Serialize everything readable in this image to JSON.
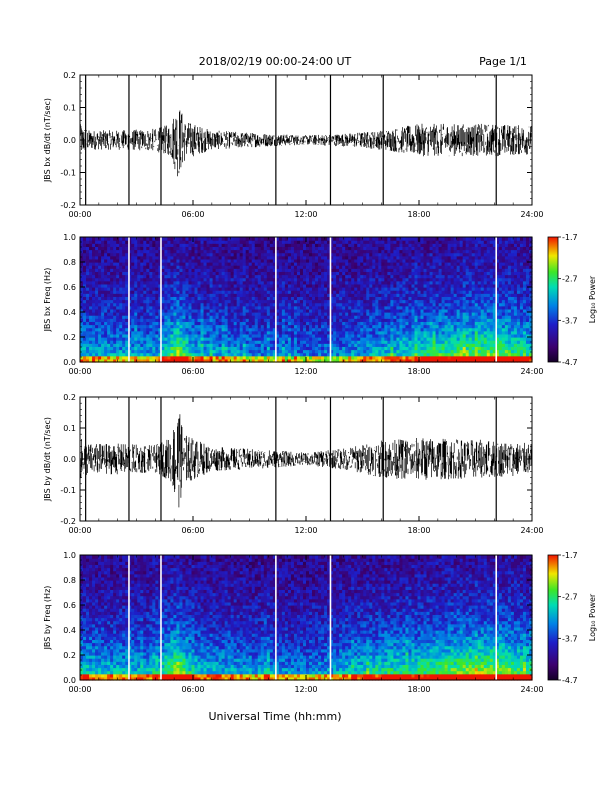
{
  "header": {
    "title": "2018/02/19   00:00-24:00 UT",
    "page": "Page 1/1"
  },
  "xaxis_label": "Universal Time (hh:mm)",
  "chart_data": [
    {
      "type": "line",
      "ylabel": "JBS bx dB/dt (nT/sec)",
      "xlim": [
        0,
        24
      ],
      "ylim": [
        -0.2,
        0.2
      ],
      "xticks": [
        "00:00",
        "06:00",
        "12:00",
        "18:00",
        "24:00"
      ],
      "yticks": [
        "0.2",
        "0.1",
        "0.0",
        "-0.1",
        "-0.2"
      ],
      "envelope": [
        {
          "x": 0,
          "amp": 0.05
        },
        {
          "x": 0.5,
          "amp": 0.03
        },
        {
          "x": 2,
          "amp": 0.03
        },
        {
          "x": 4,
          "amp": 0.035
        },
        {
          "x": 4.8,
          "amp": 0.05
        },
        {
          "x": 5.2,
          "amp": 0.12
        },
        {
          "x": 5.6,
          "amp": 0.06
        },
        {
          "x": 7,
          "amp": 0.03
        },
        {
          "x": 10,
          "amp": 0.02
        },
        {
          "x": 12,
          "amp": 0.015
        },
        {
          "x": 14,
          "amp": 0.02
        },
        {
          "x": 16,
          "amp": 0.03
        },
        {
          "x": 18,
          "amp": 0.05
        },
        {
          "x": 20,
          "amp": 0.05
        },
        {
          "x": 22,
          "amp": 0.05
        },
        {
          "x": 24,
          "amp": 0.045
        }
      ],
      "gap_lines": [
        0.3,
        2.6,
        4.3,
        10.4,
        13.3,
        16.1,
        22.1
      ]
    },
    {
      "type": "heatmap",
      "ylabel": "JBS bx Freq (Hz)",
      "xlim": [
        0,
        24
      ],
      "ylim": [
        0.0,
        1.0
      ],
      "xticks": [
        "00:00",
        "06:00",
        "12:00",
        "18:00",
        "24:00"
      ],
      "yticks": [
        "1.0",
        "0.8",
        "0.6",
        "0.4",
        "0.2",
        "0.0"
      ],
      "colorbar": {
        "label": "Log₁₀ Power",
        "min": -4.7,
        "max": -1.7,
        "ticks": [
          "-1.7",
          "-2.7",
          "-3.7",
          "-4.7"
        ]
      },
      "gap_lines": [
        2.6,
        4.3,
        10.4,
        13.3,
        22.1
      ],
      "activity": [
        {
          "x": 0,
          "level": 0.45
        },
        {
          "x": 2,
          "level": 0.4
        },
        {
          "x": 4,
          "level": 0.4
        },
        {
          "x": 5.2,
          "level": 0.75
        },
        {
          "x": 6,
          "level": 0.45
        },
        {
          "x": 9,
          "level": 0.35
        },
        {
          "x": 12,
          "level": 0.3
        },
        {
          "x": 14,
          "level": 0.35
        },
        {
          "x": 16,
          "level": 0.45
        },
        {
          "x": 18,
          "level": 0.55
        },
        {
          "x": 20,
          "level": 0.65
        },
        {
          "x": 22,
          "level": 0.7
        },
        {
          "x": 24,
          "level": 0.55
        }
      ]
    },
    {
      "type": "line",
      "ylabel": "JBS by dB/dt (nT/sec)",
      "xlim": [
        0,
        24
      ],
      "ylim": [
        -0.2,
        0.2
      ],
      "xticks": [
        "00:00",
        "06:00",
        "12:00",
        "18:00",
        "24:00"
      ],
      "yticks": [
        "0.2",
        "0.1",
        "0.0",
        "-0.1",
        "-0.2"
      ],
      "envelope": [
        {
          "x": 0,
          "amp": 0.07
        },
        {
          "x": 0.5,
          "amp": 0.05
        },
        {
          "x": 2,
          "amp": 0.05
        },
        {
          "x": 4,
          "amp": 0.045
        },
        {
          "x": 4.8,
          "amp": 0.07
        },
        {
          "x": 5.2,
          "amp": 0.17
        },
        {
          "x": 5.6,
          "amp": 0.08
        },
        {
          "x": 7,
          "amp": 0.04
        },
        {
          "x": 10,
          "amp": 0.03
        },
        {
          "x": 12,
          "amp": 0.02
        },
        {
          "x": 14,
          "amp": 0.035
        },
        {
          "x": 16,
          "amp": 0.06
        },
        {
          "x": 18,
          "amp": 0.07
        },
        {
          "x": 20,
          "amp": 0.065
        },
        {
          "x": 22,
          "amp": 0.06
        },
        {
          "x": 24,
          "amp": 0.05
        }
      ],
      "gap_lines": [
        0.3,
        2.6,
        4.3,
        10.4,
        13.3,
        16.1,
        22.1
      ]
    },
    {
      "type": "heatmap",
      "ylabel": "JBS by Freq (Hz)",
      "xlim": [
        0,
        24
      ],
      "ylim": [
        0.0,
        1.0
      ],
      "xticks": [
        "00:00",
        "06:00",
        "12:00",
        "18:00",
        "24:00"
      ],
      "yticks": [
        "1.0",
        "0.8",
        "0.6",
        "0.4",
        "0.2",
        "0.0"
      ],
      "colorbar": {
        "label": "Log₁₀ Power",
        "min": -4.7,
        "max": -1.7,
        "ticks": [
          "-1.7",
          "-2.7",
          "-3.7",
          "-4.7"
        ]
      },
      "gap_lines": [
        2.6,
        4.3,
        10.4,
        13.3,
        22.1
      ],
      "activity": [
        {
          "x": 0,
          "level": 0.5
        },
        {
          "x": 2,
          "level": 0.45
        },
        {
          "x": 4,
          "level": 0.45
        },
        {
          "x": 5.2,
          "level": 0.8
        },
        {
          "x": 6,
          "level": 0.5
        },
        {
          "x": 9,
          "level": 0.4
        },
        {
          "x": 12,
          "level": 0.35
        },
        {
          "x": 14,
          "level": 0.45
        },
        {
          "x": 16,
          "level": 0.55
        },
        {
          "x": 18,
          "level": 0.6
        },
        {
          "x": 20,
          "level": 0.7
        },
        {
          "x": 22,
          "level": 0.75
        },
        {
          "x": 24,
          "level": 0.6
        }
      ]
    }
  ]
}
